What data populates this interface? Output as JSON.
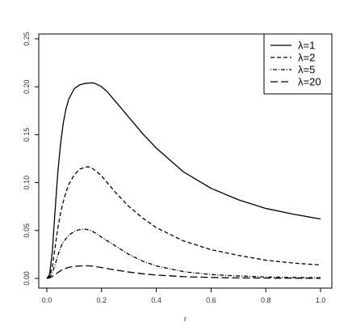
{
  "chart_data": {
    "type": "line",
    "title": "",
    "xlabel": "r",
    "ylabel": "",
    "xlim": [
      0,
      1
    ],
    "ylim": [
      0,
      0.25
    ],
    "xticks": [
      0,
      0.2,
      0.4,
      0.6,
      0.8,
      1
    ],
    "xtick_labels": [
      "0.0",
      "0.2",
      "0.4",
      "0.6",
      "0.8",
      "1.0"
    ],
    "yticks": [
      0,
      0.05,
      0.1,
      0.15,
      0.2,
      0.25
    ],
    "ytick_labels": [
      "0.00",
      "0.05",
      "0.10",
      "0.15",
      "0.20",
      "0.25"
    ],
    "grid": false,
    "legend_position": "top-right",
    "series": [
      {
        "name": "λ=1",
        "line_style": "solid",
        "color": "#000000",
        "x": [
          0,
          0.01,
          0.02,
          0.03,
          0.04,
          0.05,
          0.06,
          0.07,
          0.08,
          0.1,
          0.12,
          0.14,
          0.16,
          0.17,
          0.18,
          0.2,
          0.22,
          0.25,
          0.3,
          0.35,
          0.4,
          0.5,
          0.6,
          0.7,
          0.8,
          0.9,
          1.0
        ],
        "y": [
          0,
          0.004,
          0.028,
          0.07,
          0.11,
          0.14,
          0.162,
          0.177,
          0.187,
          0.198,
          0.202,
          0.2035,
          0.204,
          0.204,
          0.203,
          0.2,
          0.195,
          0.185,
          0.168,
          0.151,
          0.136,
          0.111,
          0.094,
          0.082,
          0.073,
          0.067,
          0.062
        ]
      },
      {
        "name": "λ=2",
        "line_style": "dashed",
        "color": "#000000",
        "x": [
          0,
          0.01,
          0.02,
          0.03,
          0.04,
          0.05,
          0.06,
          0.07,
          0.08,
          0.1,
          0.12,
          0.14,
          0.15,
          0.16,
          0.18,
          0.2,
          0.25,
          0.3,
          0.35,
          0.4,
          0.5,
          0.6,
          0.7,
          0.8,
          0.9,
          1.0
        ],
        "y": [
          0,
          0.002,
          0.012,
          0.032,
          0.052,
          0.068,
          0.08,
          0.09,
          0.098,
          0.108,
          0.114,
          0.116,
          0.1165,
          0.116,
          0.112,
          0.107,
          0.09,
          0.075,
          0.063,
          0.053,
          0.039,
          0.03,
          0.024,
          0.019,
          0.016,
          0.014
        ]
      },
      {
        "name": "λ=5",
        "line_style": "dotdash",
        "color": "#000000",
        "x": [
          0,
          0.01,
          0.02,
          0.03,
          0.04,
          0.05,
          0.06,
          0.08,
          0.1,
          0.12,
          0.14,
          0.16,
          0.18,
          0.2,
          0.25,
          0.3,
          0.35,
          0.4,
          0.5,
          0.6,
          0.7,
          0.8,
          0.9,
          1.0
        ],
        "y": [
          0,
          0.001,
          0.006,
          0.014,
          0.024,
          0.032,
          0.038,
          0.045,
          0.049,
          0.051,
          0.0515,
          0.05,
          0.047,
          0.043,
          0.034,
          0.025,
          0.018,
          0.013,
          0.007,
          0.004,
          0.0025,
          0.0015,
          0.001,
          0.0007
        ]
      },
      {
        "name": "λ=20",
        "line_style": "longdash",
        "color": "#000000",
        "x": [
          0,
          0.01,
          0.02,
          0.03,
          0.04,
          0.05,
          0.06,
          0.08,
          0.1,
          0.12,
          0.14,
          0.16,
          0.18,
          0.2,
          0.25,
          0.3,
          0.35,
          0.4,
          0.5,
          0.6,
          0.7,
          0.8,
          0.9,
          1.0
        ],
        "y": [
          0,
          0.0005,
          0.002,
          0.004,
          0.006,
          0.008,
          0.0095,
          0.0115,
          0.0125,
          0.013,
          0.0132,
          0.013,
          0.0123,
          0.0113,
          0.0088,
          0.0066,
          0.0048,
          0.0035,
          0.0018,
          0.001,
          0.0005,
          0.0003,
          0.0002,
          0.0001
        ]
      }
    ]
  }
}
